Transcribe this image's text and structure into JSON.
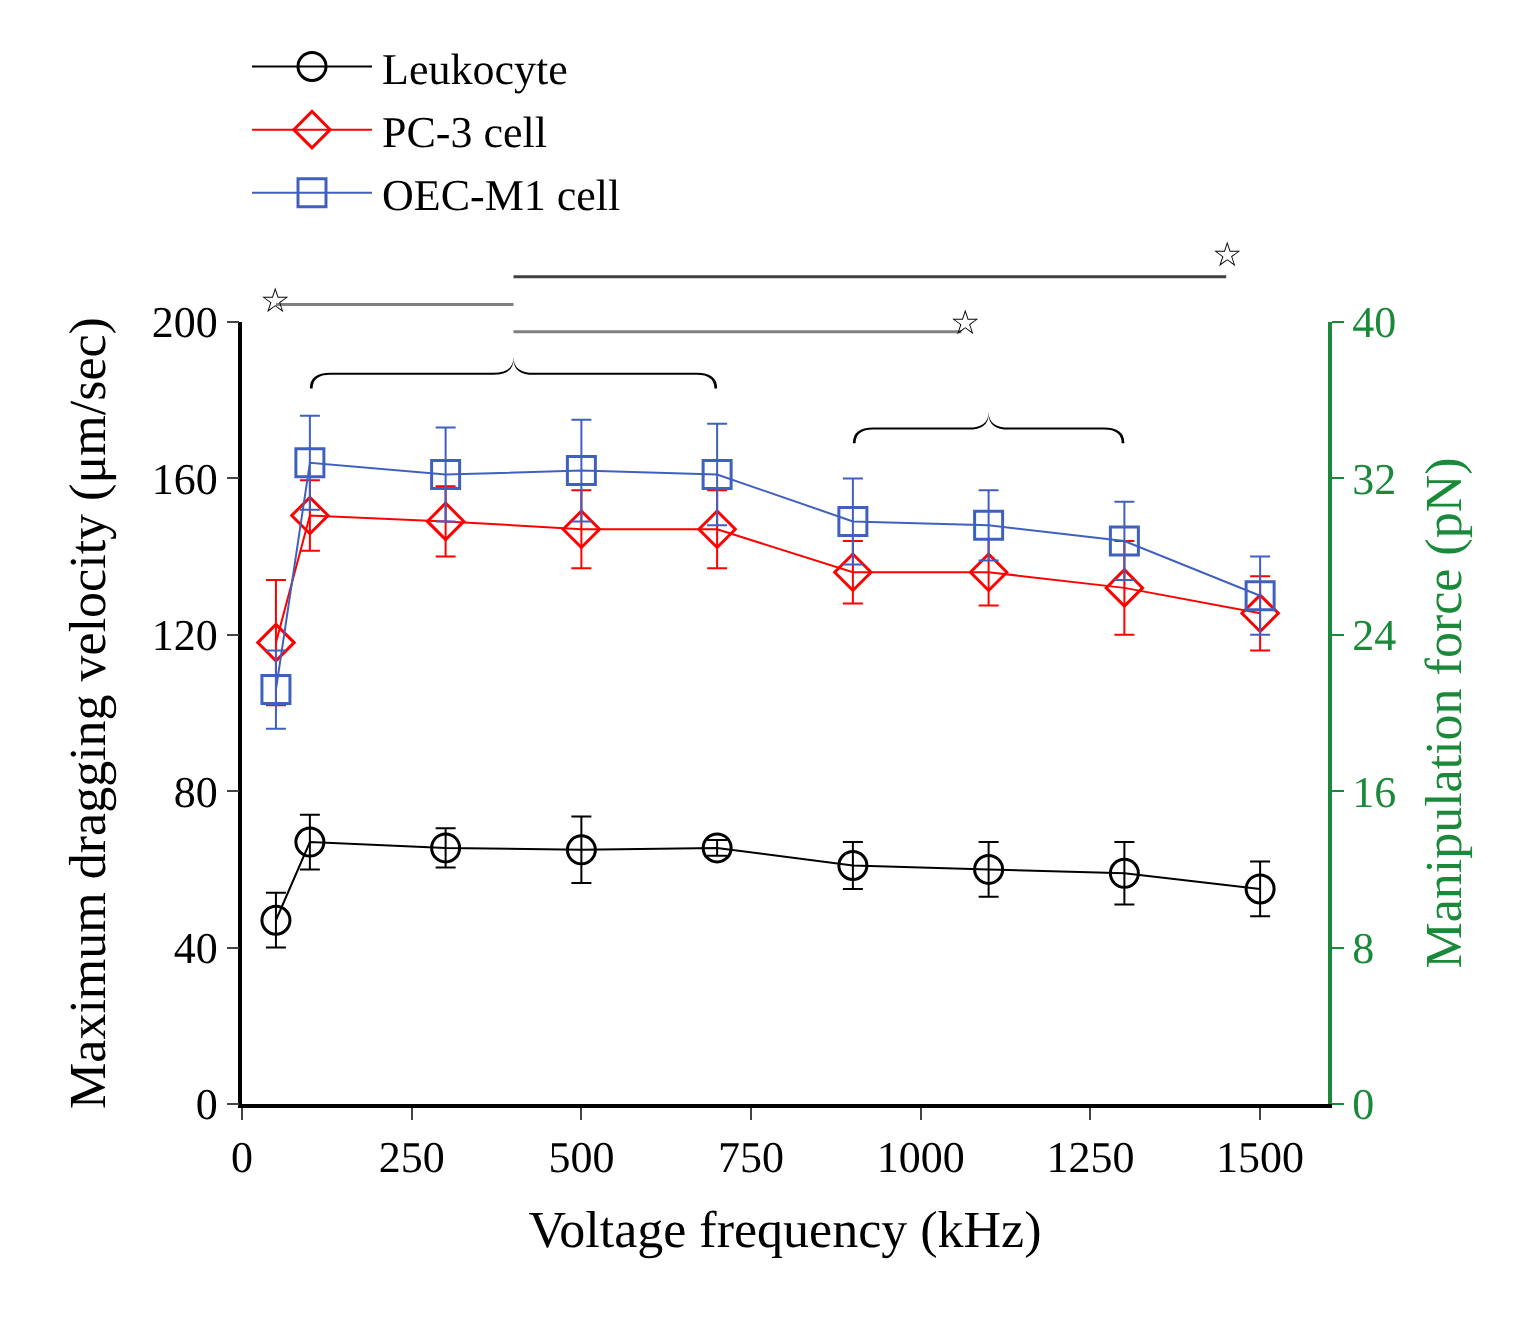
{
  "chart_data": {
    "type": "line",
    "xlabel": "Voltage frequency (kHz)",
    "ylabel": "Maximum dragging velocity (μm/sec)",
    "y2label": "Manipulation force (pN)",
    "x": [
      50,
      100,
      300,
      500,
      700,
      900,
      1100,
      1300,
      1500
    ],
    "series": [
      {
        "name": "Leukocyte",
        "color": "#000000",
        "marker": "circle",
        "values": [
          47,
          67,
          65.5,
          65,
          65.5,
          61,
          60,
          59,
          55
        ],
        "errors": [
          7,
          7,
          5,
          8.5,
          2,
          6,
          7,
          8,
          7
        ]
      },
      {
        "name": "PC-3 cell",
        "color": "#ff0000",
        "marker": "diamond",
        "values": [
          118,
          150.5,
          149,
          147,
          147,
          136,
          136,
          132,
          125.5
        ],
        "errors": [
          16,
          9,
          9,
          10,
          10,
          8,
          8.5,
          12,
          9.5
        ]
      },
      {
        "name": "OEC-M1 cell",
        "color": "#4060c0",
        "marker": "square",
        "values": [
          106,
          164,
          161,
          162,
          161,
          149,
          148,
          144,
          130
        ],
        "errors": [
          10,
          12,
          12,
          13,
          13,
          11,
          9,
          10,
          10
        ]
      }
    ],
    "xlim": [
      0,
      1600
    ],
    "xticks": [
      0,
      250,
      500,
      750,
      1000,
      1250,
      1500
    ],
    "ylim": [
      0,
      200
    ],
    "yticks": [
      0,
      40,
      80,
      120,
      160,
      200
    ],
    "y2lim": [
      0,
      40
    ],
    "y2ticks": [
      0,
      8,
      16,
      24,
      32,
      40
    ],
    "annotations": [
      "☆",
      "☆",
      "☆"
    ],
    "legend": "top left",
    "line_style": "solid"
  }
}
